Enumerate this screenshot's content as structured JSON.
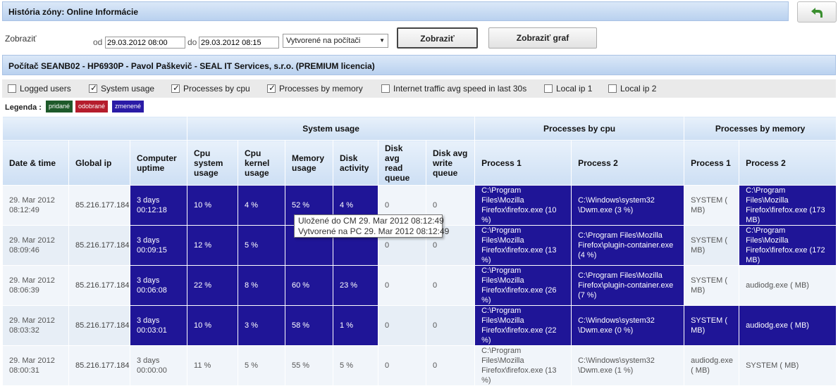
{
  "header": {
    "title": "História zóny: Online Informácie",
    "back_icon": "back-arrow-icon"
  },
  "filter": {
    "label": "Zobraziť",
    "from_label": "od",
    "from_value": "29.03.2012 08:00",
    "to_label": "do",
    "to_value": "29.03.2012 08:15",
    "select_value": "Vytvorené na počítači",
    "show_button": "Zobraziť",
    "chart_button": "Zobraziť graf"
  },
  "computer": "Počítač SEANB02 - HP6930P - Pavol Paškevič - SEAL IT Services, s.r.o. (PREMIUM licencia)",
  "checkboxes": [
    {
      "label": "Logged users",
      "checked": false
    },
    {
      "label": "System usage",
      "checked": true
    },
    {
      "label": "Processes by cpu",
      "checked": true
    },
    {
      "label": "Processes by memory",
      "checked": true
    },
    {
      "label": "Internet traffic avg speed in last 30s",
      "checked": false
    },
    {
      "label": "Local ip 1",
      "checked": false
    },
    {
      "label": "Local ip 2",
      "checked": false
    }
  ],
  "legend": {
    "label": "Legenda :",
    "items": [
      {
        "label": "pridané",
        "color": "#1e5a2a"
      },
      {
        "label": "odobrané",
        "color": "#b51d2c"
      },
      {
        "label": "zmenené",
        "color": "#2a1ba6"
      }
    ]
  },
  "table": {
    "groups": {
      "system": "System usage",
      "cpu": "Processes by cpu",
      "mem": "Processes by memory"
    },
    "headers": [
      "Date & time",
      "Global ip",
      "Computer uptime",
      "Cpu system usage",
      "Cpu kernel usage",
      "Memory usage",
      "Disk activity",
      "Disk avg read queue",
      "Disk avg write queue",
      "Process 1",
      "Process 2",
      "Process 1",
      "Process 2"
    ],
    "rows": [
      {
        "date": "29. Mar 2012",
        "time": "08:12:49",
        "ip": "85.216.177.184",
        "up1": "3 days",
        "up2": "00:12:18",
        "cpu": "10 %",
        "kernel": "4 %",
        "mem": "52 %",
        "disk": "4 %",
        "rq": "0",
        "wq": "0",
        "cp1": "C:\\Program Files\\Mozilla Firefox\\firefox.exe (10 %)",
        "cp2": "C:\\Windows\\system32 \\Dwm.exe (3 %)",
        "mp1": "SYSTEM ( MB)",
        "mp2": "C:\\Program Files\\Mozilla Firefox\\firefox.exe (173 MB)",
        "hl": [
          2,
          3,
          4,
          5,
          6,
          9,
          10,
          12
        ]
      },
      {
        "date": "29. Mar 2012",
        "time": "08:09:46",
        "ip": "85.216.177.184",
        "up1": "3 days",
        "up2": "00:09:15",
        "cpu": "12 %",
        "kernel": "5 %",
        "mem": "",
        "disk": "",
        "rq": "0",
        "wq": "0",
        "cp1": "C:\\Program Files\\Mozilla Firefox\\firefox.exe (13 %)",
        "cp2": "C:\\Program Files\\Mozilla Firefox\\plugin-container.exe (4 %)",
        "mp1": "SYSTEM ( MB)",
        "mp2": "C:\\Program Files\\Mozilla Firefox\\firefox.exe (172 MB)",
        "hl": [
          2,
          3,
          4,
          5,
          6,
          9,
          10,
          12
        ]
      },
      {
        "date": "29. Mar 2012",
        "time": "08:06:39",
        "ip": "85.216.177.184",
        "up1": "3 days",
        "up2": "00:06:08",
        "cpu": "22 %",
        "kernel": "8 %",
        "mem": "60 %",
        "disk": "23 %",
        "rq": "0",
        "wq": "0",
        "cp1": "C:\\Program Files\\Mozilla Firefox\\firefox.exe (26 %)",
        "cp2": "C:\\Program Files\\Mozilla Firefox\\plugin-container.exe (7 %)",
        "mp1": "SYSTEM ( MB)",
        "mp2": "audiodg.exe ( MB)",
        "hl": [
          2,
          3,
          4,
          5,
          6,
          9,
          10
        ]
      },
      {
        "date": "29. Mar 2012",
        "time": "08:03:32",
        "ip": "85.216.177.184",
        "up1": "3 days",
        "up2": "00:03:01",
        "cpu": "10 %",
        "kernel": "3 %",
        "mem": "58 %",
        "disk": "1 %",
        "rq": "0",
        "wq": "0",
        "cp1": "C:\\Program Files\\Mozilla Firefox\\firefox.exe (22 %)",
        "cp2": "C:\\Windows\\system32 \\Dwm.exe (0 %)",
        "mp1": "SYSTEM ( MB)",
        "mp2": "audiodg.exe ( MB)",
        "hl": [
          2,
          3,
          4,
          5,
          6,
          9,
          10,
          11,
          12
        ]
      },
      {
        "date": "29. Mar 2012",
        "time": "08:00:31",
        "ip": "85.216.177.184",
        "up1": "3 days",
        "up2": "00:00:00",
        "cpu": "11 %",
        "kernel": "5 %",
        "mem": "55 %",
        "disk": "5 %",
        "rq": "0",
        "wq": "0",
        "cp1": "C:\\Program Files\\Mozilla Firefox\\firefox.exe (13 %)",
        "cp2": "C:\\Windows\\system32 \\Dwm.exe (1 %)",
        "mp1": "audiodg.exe ( MB)",
        "mp2": "SYSTEM ( MB)",
        "hl": []
      }
    ]
  },
  "tooltip": {
    "line1": "Uložené do CM 29. Mar 2012 08:12:49",
    "line2": "Vytvorené na PC 29. Mar 2012 08:12:49"
  }
}
